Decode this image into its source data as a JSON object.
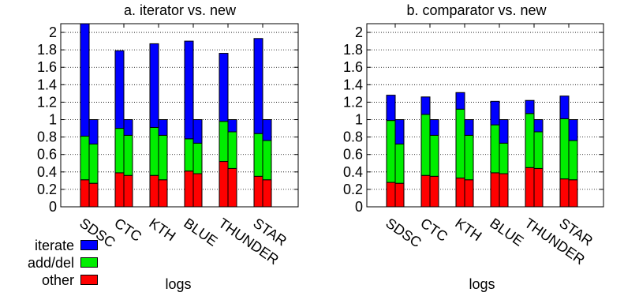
{
  "chart_data": [
    {
      "type": "bar",
      "stacked": true,
      "title": "a. iterator vs. new",
      "xlabel": "logs",
      "ylabel": "",
      "ylim": [
        0,
        2.1
      ],
      "yticks": [
        0,
        0.2,
        0.4,
        0.6,
        0.8,
        1,
        1.2,
        1.4,
        1.6,
        1.8,
        2
      ],
      "ytick_labels": [
        "0",
        "0.2",
        "0.4",
        "0.6",
        "0.8",
        "1",
        "1.2",
        "1.4",
        "1.6",
        "1.8",
        "2"
      ],
      "grid": "horizontal dotted",
      "categories": [
        "SDSC",
        "CTC",
        "KTH",
        "BLUE",
        "THUNDER",
        "STAR"
      ],
      "bars_per_category": 2,
      "series": [
        {
          "name": "other",
          "color": "#ff0000",
          "values": [
            [
              0.31,
              0.27
            ],
            [
              0.39,
              0.36
            ],
            [
              0.36,
              0.31
            ],
            [
              0.41,
              0.38
            ],
            [
              0.52,
              0.44
            ],
            [
              0.35,
              0.31
            ]
          ]
        },
        {
          "name": "add/del",
          "color": "#00ee00",
          "values": [
            [
              0.5,
              0.45
            ],
            [
              0.51,
              0.46
            ],
            [
              0.55,
              0.51
            ],
            [
              0.37,
              0.35
            ],
            [
              0.46,
              0.42
            ],
            [
              0.49,
              0.45
            ]
          ]
        },
        {
          "name": "iterate",
          "color": "#0000ff",
          "values": [
            [
              1.29,
              0.28
            ],
            [
              0.89,
              0.18
            ],
            [
              0.96,
              0.18
            ],
            [
              1.12,
              0.27
            ],
            [
              0.78,
              0.14
            ],
            [
              1.09,
              0.24
            ]
          ]
        }
      ]
    },
    {
      "type": "bar",
      "stacked": true,
      "title": "b. comparator vs. new",
      "xlabel": "logs",
      "ylabel": "",
      "ylim": [
        0,
        2.1
      ],
      "yticks": [
        0,
        0.2,
        0.4,
        0.6,
        0.8,
        1,
        1.2,
        1.4,
        1.6,
        1.8,
        2
      ],
      "ytick_labels": [
        "0",
        "0.2",
        "0.4",
        "0.6",
        "0.8",
        "1",
        "1.2",
        "1.4",
        "1.6",
        "1.8",
        "2"
      ],
      "grid": "horizontal dotted",
      "categories": [
        "SDSC",
        "CTC",
        "KTH",
        "BLUE",
        "THUNDER",
        "STAR"
      ],
      "bars_per_category": 2,
      "series": [
        {
          "name": "other",
          "color": "#ff0000",
          "values": [
            [
              0.28,
              0.27
            ],
            [
              0.36,
              0.35
            ],
            [
              0.33,
              0.31
            ],
            [
              0.39,
              0.38
            ],
            [
              0.45,
              0.44
            ],
            [
              0.32,
              0.31
            ]
          ]
        },
        {
          "name": "add/del",
          "color": "#00ee00",
          "values": [
            [
              0.71,
              0.45
            ],
            [
              0.7,
              0.47
            ],
            [
              0.79,
              0.51
            ],
            [
              0.55,
              0.35
            ],
            [
              0.62,
              0.42
            ],
            [
              0.69,
              0.45
            ]
          ]
        },
        {
          "name": "iterate",
          "color": "#0000ff",
          "values": [
            [
              0.29,
              0.28
            ],
            [
              0.2,
              0.18
            ],
            [
              0.19,
              0.18
            ],
            [
              0.27,
              0.27
            ],
            [
              0.15,
              0.14
            ],
            [
              0.26,
              0.24
            ]
          ]
        }
      ]
    }
  ],
  "legend": {
    "placement": "bottom-left",
    "items": [
      {
        "label": "iterate",
        "color": "#0000ff"
      },
      {
        "label": "add/del",
        "color": "#00ee00"
      },
      {
        "label": "other",
        "color": "#ff0000"
      }
    ]
  }
}
